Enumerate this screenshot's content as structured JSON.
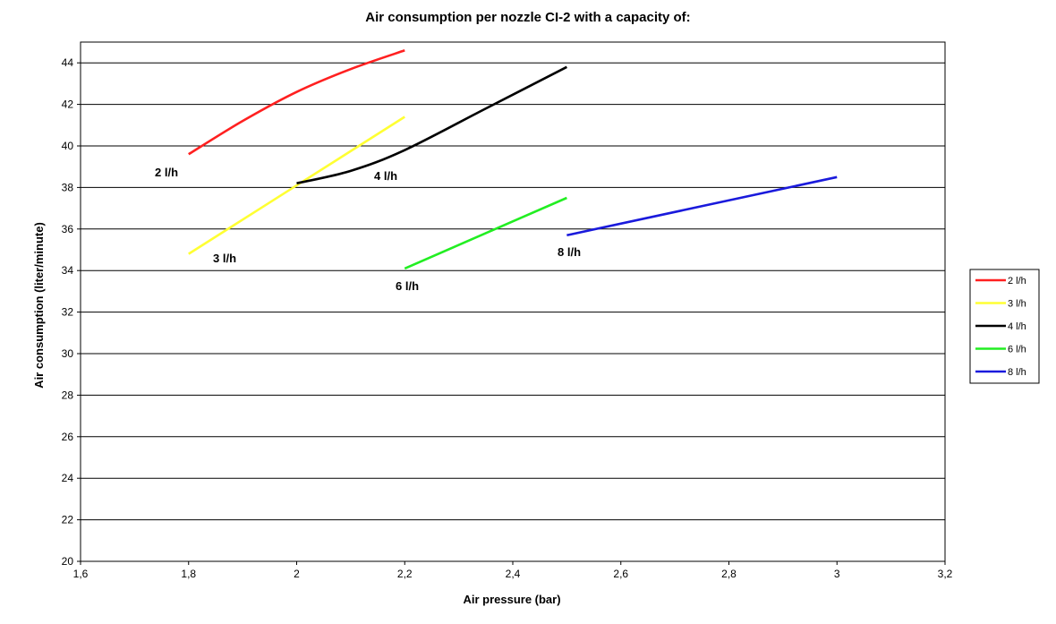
{
  "chart_data": {
    "type": "line",
    "title": "Air consumption per nozzle CI-2 with a capacity of:",
    "xlabel": "Air pressure (bar)",
    "ylabel": "Air consumption (liter/minute)",
    "xlim": [
      1.6,
      3.2
    ],
    "ylim": [
      20,
      45
    ],
    "x_ticks": [
      1.6,
      1.8,
      2.0,
      2.2,
      2.4,
      2.6,
      2.8,
      3.0,
      3.2
    ],
    "x_tick_labels": [
      "1,6",
      "1,8",
      "2",
      "2,2",
      "2,4",
      "2,6",
      "2,8",
      "3",
      "3,2"
    ],
    "y_ticks": [
      20,
      22,
      24,
      26,
      28,
      30,
      32,
      34,
      36,
      38,
      40,
      42,
      44
    ],
    "y_tick_labels": [
      "20",
      "22",
      "24",
      "26",
      "28",
      "30",
      "32",
      "34",
      "36",
      "38",
      "40",
      "42",
      "44"
    ],
    "grid": "horizontal",
    "legend_position": "right",
    "series": [
      {
        "name": "2 l/h",
        "color": "#ff2020",
        "label": "2 l/h",
        "points": [
          [
            1.8,
            39.6
          ],
          [
            1.9,
            41.2
          ],
          [
            2.0,
            42.6
          ],
          [
            2.1,
            43.7
          ],
          [
            2.2,
            44.6
          ]
        ]
      },
      {
        "name": "3 l/h",
        "color": "#ffff33",
        "label": "3 l/h",
        "points": [
          [
            1.8,
            34.8
          ],
          [
            2.0,
            38.1
          ],
          [
            2.2,
            41.4
          ]
        ]
      },
      {
        "name": "4 l/h",
        "color": "#000000",
        "label": "4 l/h",
        "points": [
          [
            2.0,
            38.2
          ],
          [
            2.1,
            38.8
          ],
          [
            2.2,
            39.8
          ],
          [
            2.35,
            41.8
          ],
          [
            2.5,
            43.8
          ]
        ]
      },
      {
        "name": "6 l/h",
        "color": "#22ee22",
        "label": "6 l/h",
        "points": [
          [
            2.2,
            34.1
          ],
          [
            2.35,
            35.8
          ],
          [
            2.5,
            37.5
          ]
        ]
      },
      {
        "name": "8 l/h",
        "color": "#1a1adc",
        "label": "8 l/h",
        "points": [
          [
            2.5,
            35.7
          ],
          [
            2.75,
            37.1
          ],
          [
            3.0,
            38.5
          ]
        ]
      }
    ]
  }
}
